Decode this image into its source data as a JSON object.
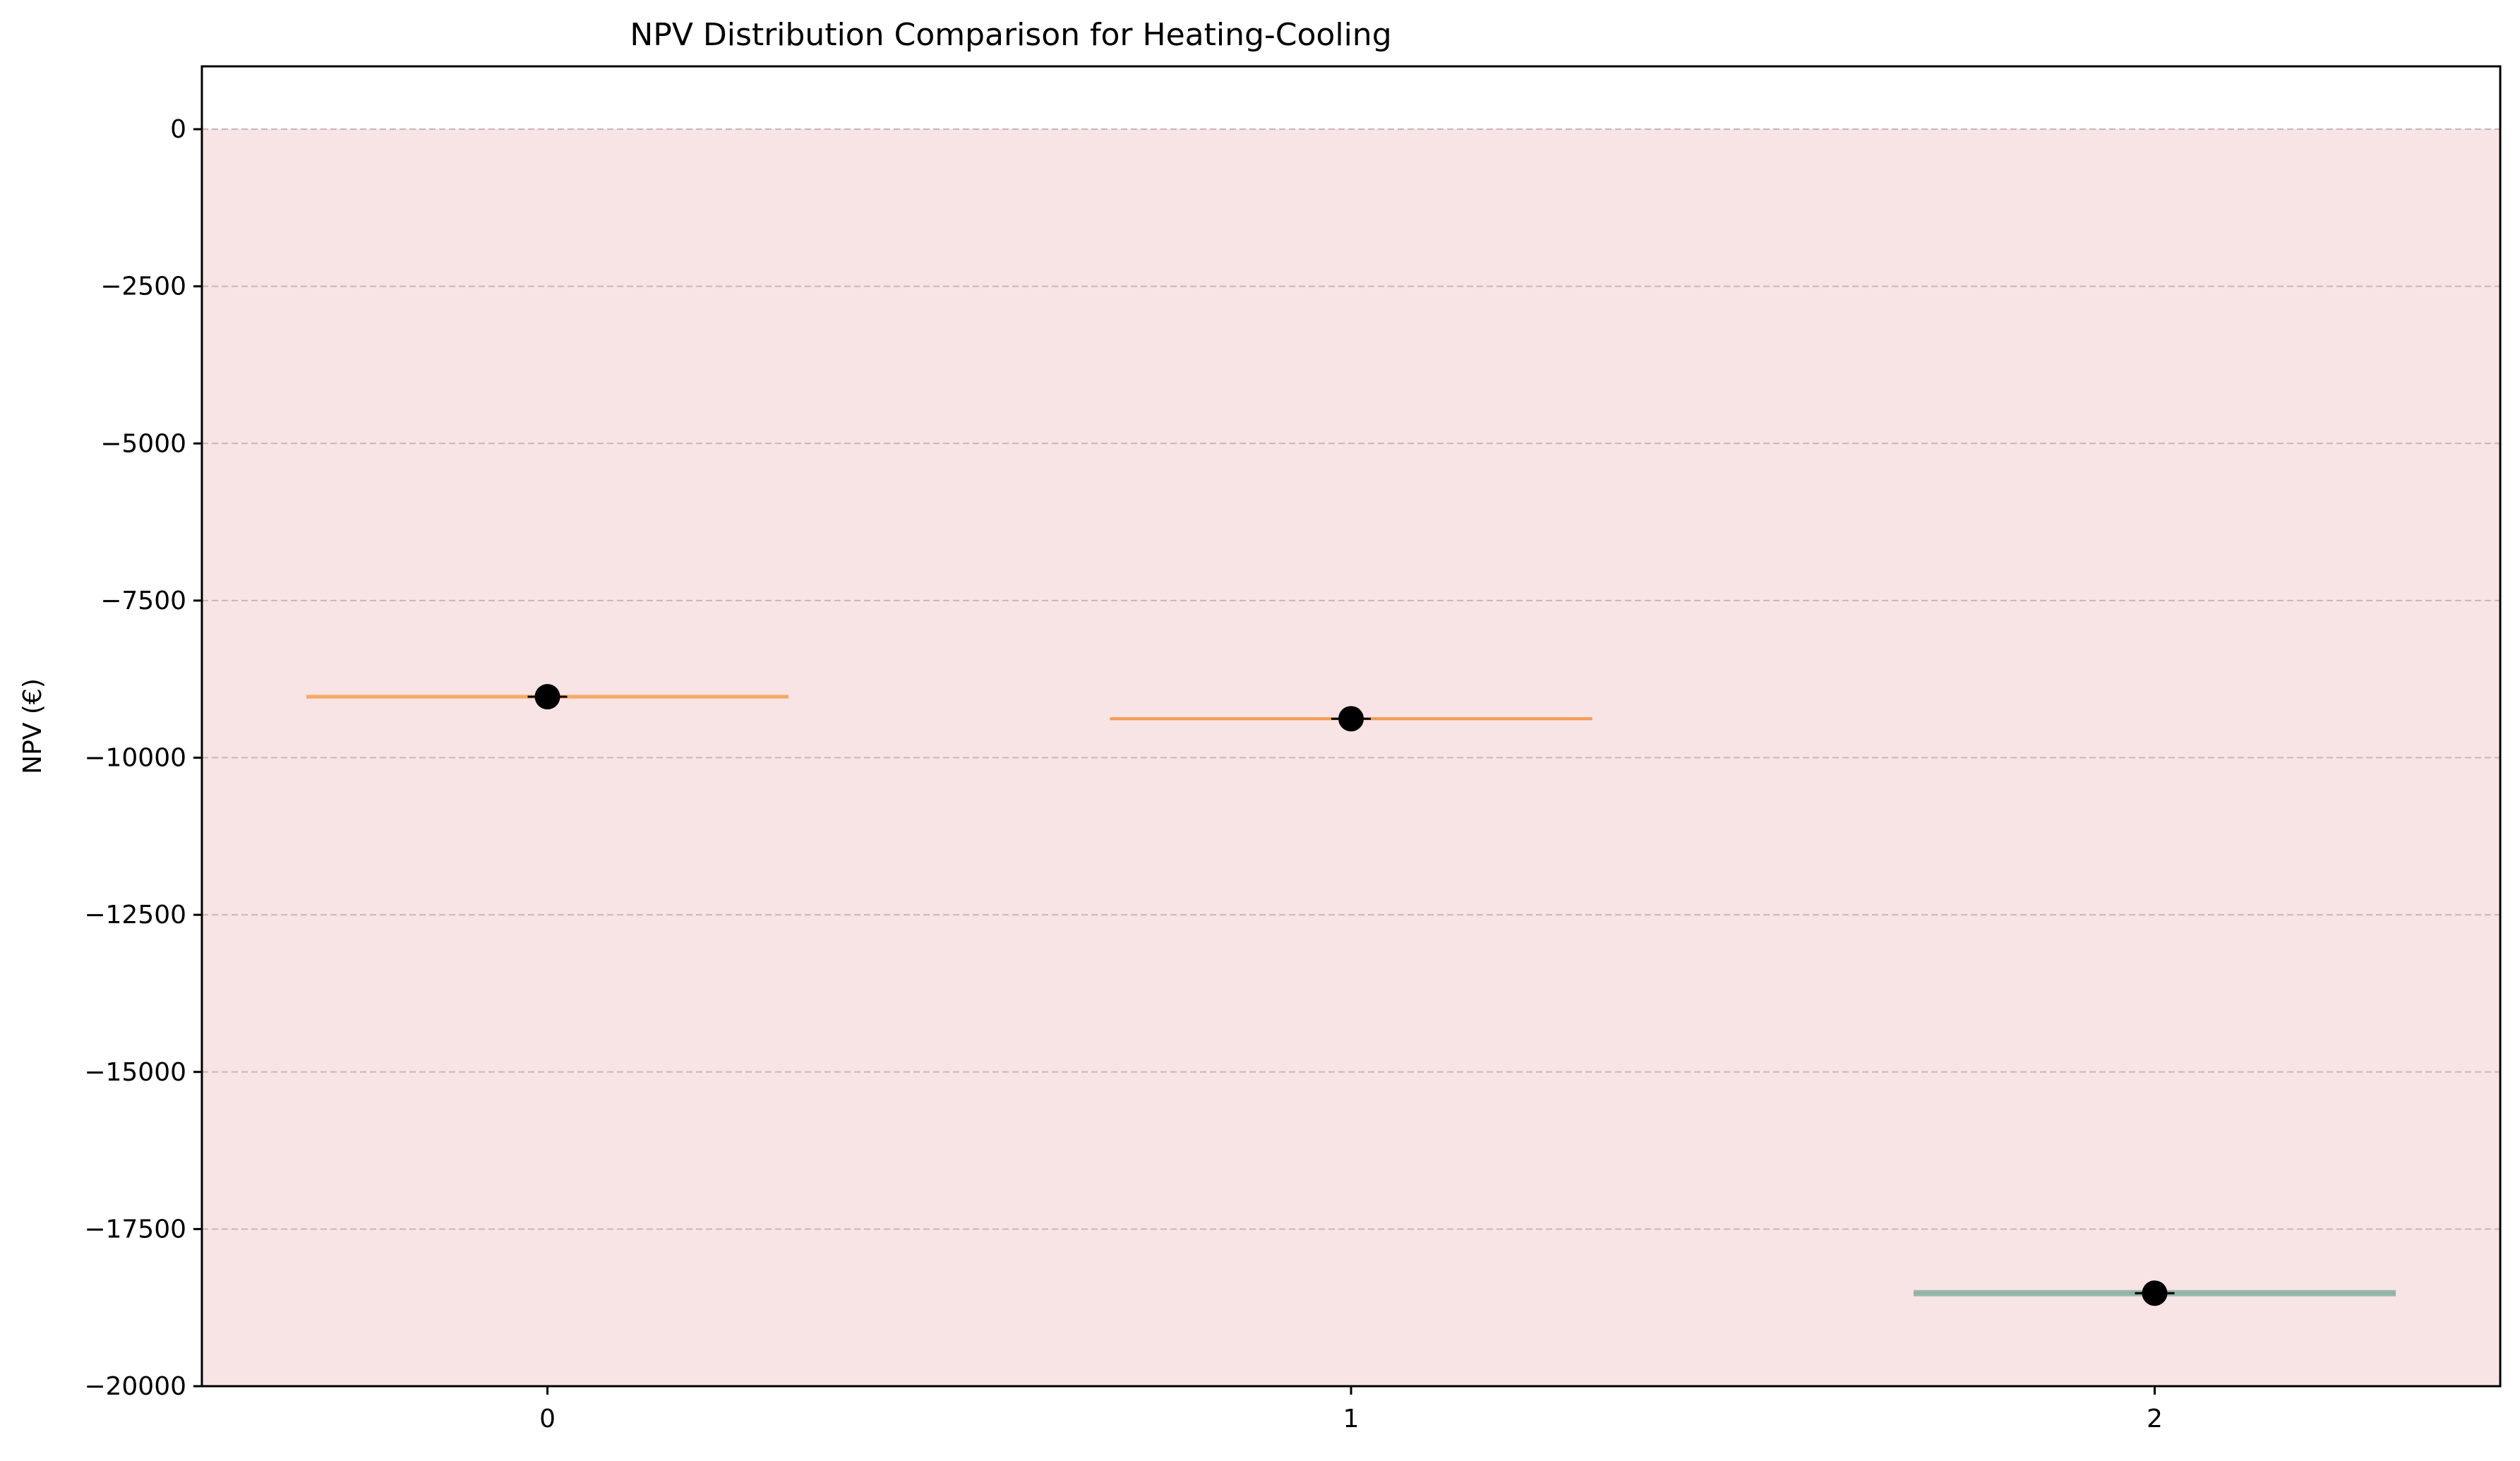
{
  "chart_data": {
    "type": "violin",
    "title": "NPV Distribution Comparison for Heating-Cooling",
    "xlabel": "",
    "ylabel": "NPV (€)",
    "xlim": [
      -0.43,
      2.43
    ],
    "ylim": [
      -20000,
      1000
    ],
    "x_ticks": [
      "0",
      "1",
      "2"
    ],
    "y_ticks": [
      "0",
      "−2500",
      "−5000",
      "−7500",
      "−10000",
      "−12500",
      "−15000",
      "−17500",
      "−20000"
    ],
    "y_tick_values": [
      0,
      -2500,
      -5000,
      -7500,
      -10000,
      -12500,
      -15000,
      -17500,
      -20000
    ],
    "grid": {
      "axis": "y",
      "style": "dashed",
      "color": "#c9b4b8"
    },
    "negative_region": {
      "from": -20000,
      "to": 0,
      "color": "#f9e4e5"
    },
    "categories": [
      0,
      1,
      2
    ],
    "distributions": [
      {
        "x": 0,
        "median": -9030,
        "min": -9060,
        "max": -9000,
        "color": "#f4aa66"
      },
      {
        "x": 1,
        "median": -9380,
        "min": -9390,
        "max": -9370,
        "color": "#f39a50"
      },
      {
        "x": 2,
        "median": -18520,
        "min": -18570,
        "max": -18470,
        "color": "#8fb4a6"
      }
    ],
    "median_marker_color": "#000000",
    "violin_half_width": 0.3
  }
}
